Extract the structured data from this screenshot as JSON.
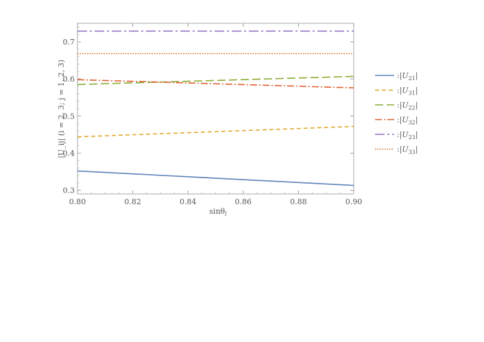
{
  "chart_data": {
    "type": "line",
    "xlabel": "sinθ",
    "xlabel_sub": "l",
    "ylabel": "|U_ij| (i = 2, 3; j = 1, 2, 3)",
    "xlim": [
      0.8,
      0.9
    ],
    "ylim": [
      0.29,
      0.75
    ],
    "x_ticks": [
      0.8,
      0.82,
      0.84,
      0.86,
      0.88,
      0.9
    ],
    "x_tick_labels": [
      "0.80",
      "0.82",
      "0.84",
      "0.86",
      "0.88",
      "0.90"
    ],
    "y_ticks": [
      0.3,
      0.4,
      0.5,
      0.6,
      0.7
    ],
    "y_tick_labels": [
      "0.3",
      "0.4",
      "0.5",
      "0.6",
      "0.7"
    ],
    "grid": false,
    "legend_position": "right",
    "series": [
      {
        "name": "U",
        "sub": "21",
        "color": "#5b7fb8",
        "dash": "solid",
        "x": [
          0.8,
          0.9
        ],
        "y": [
          0.352,
          0.313
        ]
      },
      {
        "name": "U",
        "sub": "31",
        "color": "#e0a526",
        "dash": "dashed",
        "x": [
          0.8,
          0.9
        ],
        "y": [
          0.444,
          0.472
        ]
      },
      {
        "name": "U",
        "sub": "22",
        "color": "#8aab32",
        "dash": "long-dashed",
        "x": [
          0.8,
          0.9
        ],
        "y": [
          0.585,
          0.607
        ]
      },
      {
        "name": "U",
        "sub": "32",
        "color": "#e05c2c",
        "dash": "dash-dot",
        "x": [
          0.8,
          0.9
        ],
        "y": [
          0.598,
          0.576
        ]
      },
      {
        "name": "U",
        "sub": "23",
        "color": "#8c6fc0",
        "dash": "long-dash-dot",
        "x": [
          0.8,
          0.9
        ],
        "y": [
          0.729,
          0.729
        ]
      },
      {
        "name": "U",
        "sub": "33",
        "color": "#d86c1e",
        "dash": "dotted",
        "x": [
          0.8,
          0.9
        ],
        "y": [
          0.668,
          0.668
        ]
      }
    ]
  }
}
